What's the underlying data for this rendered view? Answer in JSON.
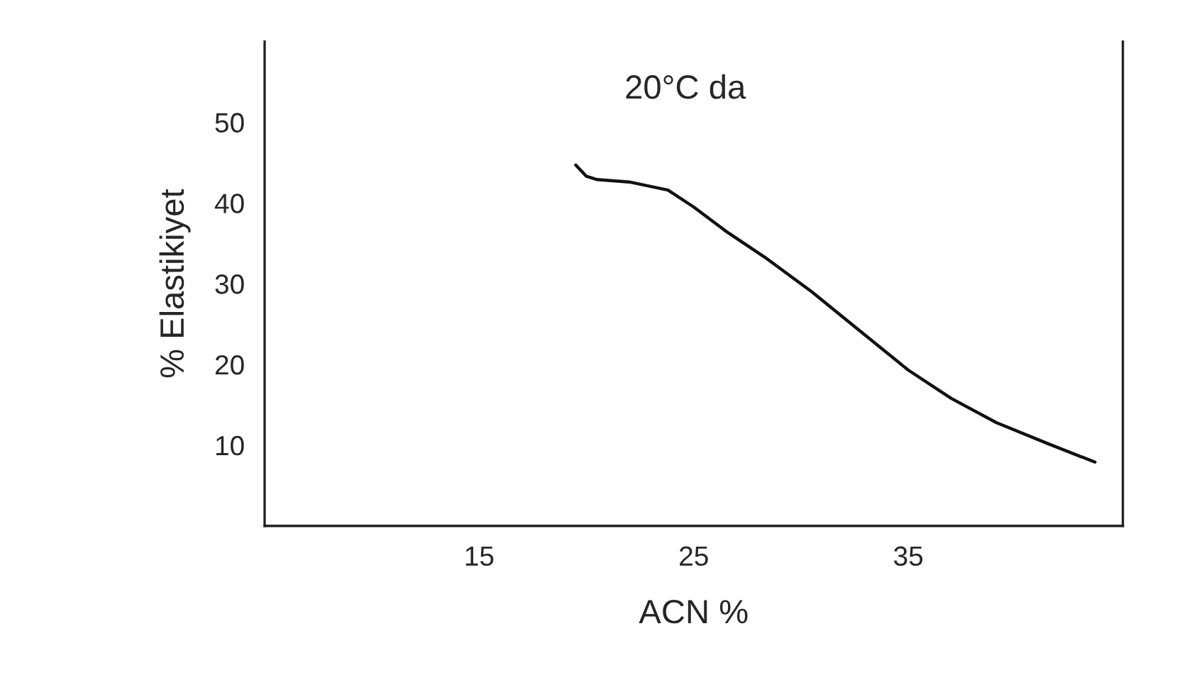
{
  "chart_data": {
    "type": "line",
    "xlabel": "ACN %",
    "ylabel": "% Elastikiyet",
    "annotations": [
      "20°C da"
    ],
    "x": [
      19.5,
      20.0,
      20.5,
      22.0,
      23.8,
      25.0,
      26.5,
      28.3,
      30.5,
      32.4,
      35.0,
      37.0,
      39.1,
      41.5,
      43.7
    ],
    "series": [
      {
        "color": "#111111",
        "values": [
          44.7,
          43.3,
          42.9,
          42.6,
          41.6,
          39.5,
          36.5,
          33.3,
          29.0,
          24.9,
          19.3,
          15.8,
          12.8,
          10.2,
          7.9
        ]
      }
    ],
    "xlim": [
      5,
      45
    ],
    "ylim": [
      0,
      60
    ],
    "xticks": [
      15,
      25,
      35
    ],
    "yticks": [
      10,
      20,
      30,
      40,
      50
    ],
    "grid": false,
    "marker": "none",
    "line_style": "solid"
  }
}
